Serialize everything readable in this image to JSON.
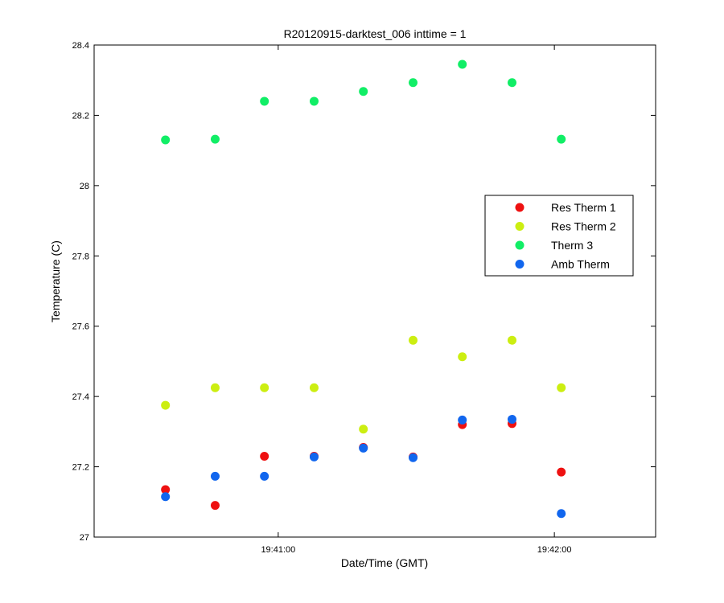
{
  "chart_data": {
    "type": "scatter",
    "title": "R20120915-darktest_006 inttime = 1",
    "xlabel": "Date/Time (GMT)",
    "ylabel": "Temperature (C)",
    "x_unit": "seconds after 19:40:00",
    "xlim": [
      20,
      142
    ],
    "ylim": [
      27.0,
      28.4
    ],
    "x_ticks": [
      {
        "value": 60,
        "label": "19:41:00"
      },
      {
        "value": 120,
        "label": "19:42:00"
      }
    ],
    "y_ticks": [
      {
        "value": 27.0,
        "label": "27"
      },
      {
        "value": 27.2,
        "label": "27.2"
      },
      {
        "value": 27.4,
        "label": "27.4"
      },
      {
        "value": 27.6,
        "label": "27.6"
      },
      {
        "value": 27.8,
        "label": "27.8"
      },
      {
        "value": 28.0,
        "label": "28"
      },
      {
        "value": 28.2,
        "label": "28.2"
      },
      {
        "value": 28.4,
        "label": "28.4"
      }
    ],
    "x": [
      35.5,
      46.3,
      57.0,
      67.8,
      78.5,
      89.3,
      100.0,
      110.8,
      121.5
    ],
    "series": [
      {
        "name": "Res Therm 1",
        "color": "#ee1111",
        "values": [
          27.135,
          27.09,
          27.23,
          27.23,
          27.255,
          27.228,
          27.32,
          27.323,
          27.185
        ]
      },
      {
        "name": "Res Therm 2",
        "color": "#ccee11",
        "values": [
          27.375,
          27.425,
          27.425,
          27.425,
          27.307,
          27.56,
          27.513,
          27.56,
          27.425
        ]
      },
      {
        "name": "Therm 3",
        "color": "#11ee66",
        "values": [
          28.13,
          28.132,
          28.24,
          28.24,
          28.268,
          28.293,
          28.345,
          28.293,
          28.132
        ]
      },
      {
        "name": "Amb Therm",
        "color": "#1166ee",
        "values": [
          27.115,
          27.173,
          27.173,
          27.228,
          27.253,
          27.226,
          27.333,
          27.335,
          27.067
        ]
      }
    ],
    "grid": false,
    "legend_position": "right-center"
  }
}
